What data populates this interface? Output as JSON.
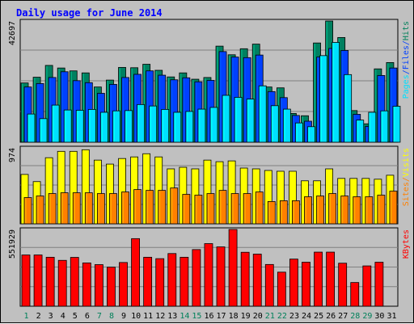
{
  "chart_data": {
    "type": "bar",
    "title": "Daily usage for June 2014",
    "categories": [
      "1",
      "2",
      "3",
      "4",
      "5",
      "6",
      "7",
      "8",
      "9",
      "10",
      "11",
      "12",
      "13",
      "14",
      "15",
      "16",
      "17",
      "18",
      "19",
      "20",
      "21",
      "22",
      "23",
      "24",
      "25",
      "26",
      "27",
      "28",
      "29",
      "30",
      "31"
    ],
    "weekend_days": [
      1,
      7,
      8,
      14,
      15,
      21,
      22,
      28,
      29
    ],
    "panels": [
      {
        "key": "top",
        "ymax_label": "42697",
        "ymax": 42697,
        "legend": [
          {
            "text": "Hits",
            "color": "#00805a"
          },
          {
            "text": "/",
            "color": "#0040ff"
          },
          {
            "text": "Files",
            "color": "#0040ff"
          },
          {
            "text": "/",
            "color": "#0040ff"
          },
          {
            "text": "Pages",
            "color": "#00e0ff"
          }
        ],
        "series": [
          {
            "name": "Hits",
            "color": "#008060",
            "values": [
              20600,
              22600,
              26700,
              25800,
              24800,
              24100,
              19200,
              21600,
              26000,
              25900,
              27100,
              25000,
              22700,
              24100,
              21900,
              22500,
              33400,
              30400,
              32500,
              34100,
              19200,
              18900,
              10000,
              9200,
              34500,
              43900,
              36400,
              11000,
              6400,
              25500,
              27700
            ]
          },
          {
            "name": "Files",
            "color": "#0040ff",
            "values": [
              19200,
              20400,
              22500,
              24500,
              21400,
              20700,
              17000,
              20100,
              22500,
              23600,
              24800,
              23300,
              21700,
              22400,
              21000,
              21500,
              31500,
              29600,
              29400,
              30300,
              17600,
              15500,
              9300,
              7300,
              29600,
              32600,
              31900,
              9700,
              5500,
              23200,
              25800
            ]
          },
          {
            "name": "Pages",
            "color": "#00e0ff",
            "values": [
              9800,
              8200,
              12900,
              11200,
              11100,
              11400,
              10400,
              10900,
              11000,
              13100,
              12600,
              11400,
              10400,
              10700,
              11500,
              12100,
              16300,
              15600,
              15000,
              19600,
              12700,
              11500,
              6700,
              5400,
              30100,
              34700,
              23500,
              7700,
              10400,
              10900,
              12500
            ]
          }
        ]
      },
      {
        "key": "middle",
        "ymax_label": "974",
        "ymax": 974,
        "legend": [
          {
            "text": "Visits",
            "color": "#ffff00"
          },
          {
            "text": "/",
            "color": "#ff8000"
          },
          {
            "text": "Sites",
            "color": "#ff8000"
          }
        ],
        "series": [
          {
            "name": "Visits",
            "color": "#ffff00",
            "values": [
              620,
              530,
              830,
              910,
              910,
              930,
              800,
              750,
              820,
              840,
              880,
              840,
              690,
              710,
              690,
              800,
              780,
              790,
              700,
              690,
              670,
              660,
              660,
              540,
              540,
              690,
              570,
              570,
              570,
              560,
              610
            ]
          },
          {
            "name": "Sites",
            "color": "#ff8000",
            "values": [
              330,
              350,
              380,
              390,
              390,
              390,
              380,
              380,
              400,
              430,
              420,
              420,
              450,
              370,
              360,
              380,
              420,
              380,
              380,
              400,
              280,
              290,
              290,
              340,
              350,
              380,
              350,
              340,
              340,
              360,
              410
            ]
          }
        ]
      },
      {
        "key": "bottom",
        "ymax_label": "551929",
        "ymax": 551929,
        "legend": [
          {
            "text": "KBytes",
            "color": "#ff0000"
          }
        ],
        "series": [
          {
            "name": "KBytes",
            "color": "#ff0000",
            "values": [
              361000,
              361000,
              345000,
              323000,
              344000,
              305000,
              293000,
              275000,
              308000,
              476000,
              345000,
              335000,
              371000,
              345000,
              399000,
              441000,
              418000,
              552000,
              380000,
              367000,
              294000,
              240000,
              332000,
              310000,
              381000,
              381000,
              303000,
              167000,
              284000,
              310000,
              0
            ]
          }
        ]
      }
    ]
  }
}
